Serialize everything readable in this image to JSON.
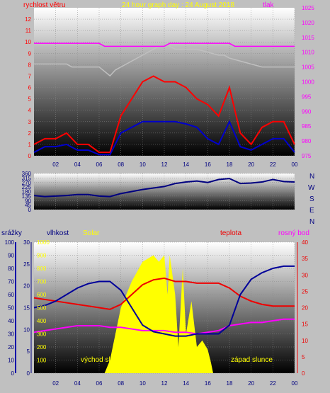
{
  "header": {
    "left_label": "rychlost větru",
    "title": "24 hour graph day : 24 August 2018",
    "right_label": "tlak"
  },
  "labels": {
    "precip": "srážky",
    "humidity": "vlhkost",
    "solar": "Solar",
    "temperature": "teplota",
    "dewpoint": "rosný bod",
    "sunrise": "východ slunce",
    "sunset": "západ slunce",
    "compass": [
      "N",
      "W",
      "S",
      "E",
      "N"
    ]
  },
  "colors": {
    "wind_gust": "#ff0000",
    "wind_avg": "#0000cc",
    "pressure": "#c0c0c0",
    "pressure_ref": "#ff00ff",
    "direction": "#000080",
    "humidity": "#000099",
    "temperature": "#ee0000",
    "dewpoint": "#ff00ff",
    "solar": "#ffff00",
    "left_axis_text": "#000080",
    "right_axis_text": "#ff00ff",
    "temp_axis_text": "#ee0000",
    "solar_axis_text": "#ffff00"
  },
  "chart_data": [
    {
      "type": "line",
      "title": "24 hour graph day : 24 August 2018",
      "xlabel": "",
      "x_ticks": [
        "02",
        "04",
        "06",
        "08",
        "10",
        "12",
        "14",
        "16",
        "18",
        "20",
        "22",
        "00"
      ],
      "y_left": {
        "label": "rychlost větru",
        "range": [
          0,
          13
        ],
        "ticks": [
          0,
          1,
          2,
          3,
          4,
          5,
          6,
          7,
          8,
          9,
          10,
          11,
          12
        ]
      },
      "y_right": {
        "label": "tlak",
        "range": [
          975,
          1025
        ],
        "ticks": [
          975,
          980,
          985,
          990,
          995,
          1000,
          1005,
          1010,
          1015,
          1020,
          1025
        ]
      },
      "series": [
        {
          "name": "tlak",
          "axis": "right",
          "x": [
            0,
            3,
            3.5,
            6,
            7,
            7.5,
            8,
            9,
            10,
            11,
            12,
            13,
            14,
            15,
            16,
            17,
            17.5,
            18,
            19,
            20,
            21,
            22,
            23,
            24
          ],
          "values": [
            1006,
            1006,
            1005,
            1005,
            1002,
            1004,
            1005,
            1007,
            1009,
            1011,
            1013,
            1011,
            1011,
            1011,
            1010,
            1009,
            1009,
            1008,
            1007,
            1006,
            1005,
            1005,
            1005,
            1005
          ]
        },
        {
          "axis": "right",
          "x": [
            0,
            6,
            6.5,
            12,
            12.5,
            18,
            18.5,
            24
          ],
          "values": [
            1013,
            1013,
            1012,
            1012,
            1013,
            1013,
            1012,
            1012
          ]
        },
        {
          "axis": "left",
          "x": [
            0,
            1,
            2,
            3,
            4,
            5,
            6,
            7,
            8,
            9,
            10,
            11,
            12,
            13,
            14,
            15,
            16,
            17,
            18,
            19,
            20,
            21,
            22,
            23,
            24
          ],
          "values": [
            1.0,
            1.5,
            1.5,
            2.0,
            1.0,
            1.0,
            0.3,
            0.3,
            3.5,
            5.0,
            6.5,
            7.0,
            6.5,
            6.5,
            6.0,
            5.0,
            4.5,
            3.5,
            6.0,
            2.0,
            1.0,
            2.5,
            3.0,
            3.0,
            1.0
          ]
        },
        {
          "axis": "left",
          "x": [
            0,
            1,
            2,
            3,
            4,
            5,
            6,
            7,
            8,
            9,
            10,
            11,
            12,
            13,
            14,
            15,
            16,
            17,
            18,
            19,
            20,
            21,
            22,
            23,
            24
          ],
          "values": [
            0.3,
            0.8,
            0.8,
            1.0,
            0.5,
            0.5,
            0.1,
            0.1,
            2.0,
            2.5,
            3.0,
            3.0,
            3.0,
            3.0,
            2.8,
            2.5,
            1.5,
            1.0,
            3.0,
            0.8,
            0.5,
            1.0,
            1.5,
            1.5,
            0.3
          ]
        }
      ]
    },
    {
      "type": "line",
      "x_ticks": [],
      "y": {
        "range": [
          0,
          360
        ],
        "ticks": [
          0,
          45,
          90,
          135,
          180,
          225,
          270,
          315,
          360
        ]
      },
      "series": [
        {
          "axis": "left",
          "x": [
            0,
            1,
            2,
            3,
            4,
            5,
            6,
            7,
            8,
            9,
            10,
            11,
            12,
            13,
            14,
            15,
            16,
            17,
            18,
            19,
            20,
            21,
            22,
            23,
            24
          ],
          "values": [
            140,
            130,
            135,
            140,
            150,
            150,
            135,
            130,
            160,
            180,
            200,
            215,
            230,
            260,
            275,
            285,
            270,
            300,
            310,
            260,
            265,
            275,
            300,
            280,
            275
          ]
        }
      ]
    },
    {
      "type": "line",
      "x_ticks": [
        "02",
        "04",
        "06",
        "08",
        "10",
        "12",
        "14",
        "16",
        "18",
        "20",
        "22",
        "00"
      ],
      "y_axes": {
        "precip": {
          "label": "srážky",
          "range": [
            0,
            100
          ],
          "ticks": [
            0,
            10,
            20,
            30,
            40,
            50,
            60,
            70,
            80,
            90,
            100
          ]
        },
        "humidity": {
          "label": "vlhkost",
          "range": [
            0,
            30
          ],
          "ticks": [
            0,
            5,
            10,
            15,
            20,
            25,
            30
          ]
        },
        "solar": {
          "label": "Solar",
          "range": [
            0,
            1000
          ],
          "ticks": [
            0,
            100,
            200,
            300,
            400,
            500,
            600,
            700,
            800,
            900,
            1000
          ]
        },
        "temperature": {
          "label": "teplota",
          "range": [
            0,
            40
          ],
          "ticks": [
            0,
            5,
            10,
            15,
            20,
            25,
            30,
            35,
            40
          ]
        }
      },
      "series": [
        {
          "name": "teplota",
          "axis": "temperature",
          "x": [
            0,
            1,
            2,
            3,
            4,
            5,
            6,
            7,
            8,
            9,
            10,
            11,
            12,
            13,
            14,
            15,
            16,
            17,
            18,
            19,
            20,
            21,
            22,
            23,
            24
          ],
          "values": [
            23,
            22.5,
            22,
            21.5,
            21,
            20.5,
            20,
            19.5,
            21,
            24,
            27,
            28.5,
            29,
            28,
            28,
            27.5,
            27.5,
            27.5,
            26,
            23.5,
            22,
            21,
            20.5,
            20.5,
            20.5
          ]
        },
        {
          "name": "rosný bod",
          "axis": "temperature",
          "x": [
            0,
            1,
            2,
            3,
            4,
            5,
            6,
            7,
            8,
            9,
            10,
            11,
            12,
            13,
            14,
            15,
            16,
            17,
            18,
            19,
            20,
            21,
            22,
            23,
            24
          ],
          "values": [
            12.5,
            13,
            13.5,
            14,
            14.5,
            14.5,
            14.5,
            14,
            14,
            13.5,
            13,
            13,
            13,
            12.5,
            12.5,
            12,
            12.5,
            13,
            14.5,
            15,
            15.5,
            15.5,
            16,
            16.5,
            16.5
          ]
        },
        {
          "name": "vlhkost",
          "axis": "humidity",
          "x": [
            0,
            1,
            2,
            3,
            4,
            5,
            6,
            7,
            8,
            9,
            10,
            11,
            12,
            13,
            14,
            15,
            16,
            17,
            18,
            19,
            20,
            21,
            22,
            23,
            24
          ],
          "values": [
            15,
            15.5,
            16.5,
            18,
            19.5,
            20.5,
            21,
            21,
            19,
            15,
            11,
            9.5,
            9,
            8.5,
            8.5,
            9,
            9,
            9,
            11,
            18,
            21.5,
            23,
            24,
            24.5,
            24.5
          ]
        },
        {
          "name": "Solar",
          "axis": "solar",
          "x": [
            6.5,
            7,
            8,
            9,
            10,
            11,
            11.5,
            12,
            12.3,
            12.5,
            13,
            13.3,
            13.7,
            14,
            14.5,
            15,
            15.5,
            16,
            16.3,
            16.5
          ],
          "values": [
            0,
            100,
            500,
            700,
            850,
            900,
            850,
            900,
            600,
            900,
            600,
            200,
            800,
            300,
            550,
            200,
            250,
            180,
            80,
            0
          ]
        }
      ]
    }
  ]
}
